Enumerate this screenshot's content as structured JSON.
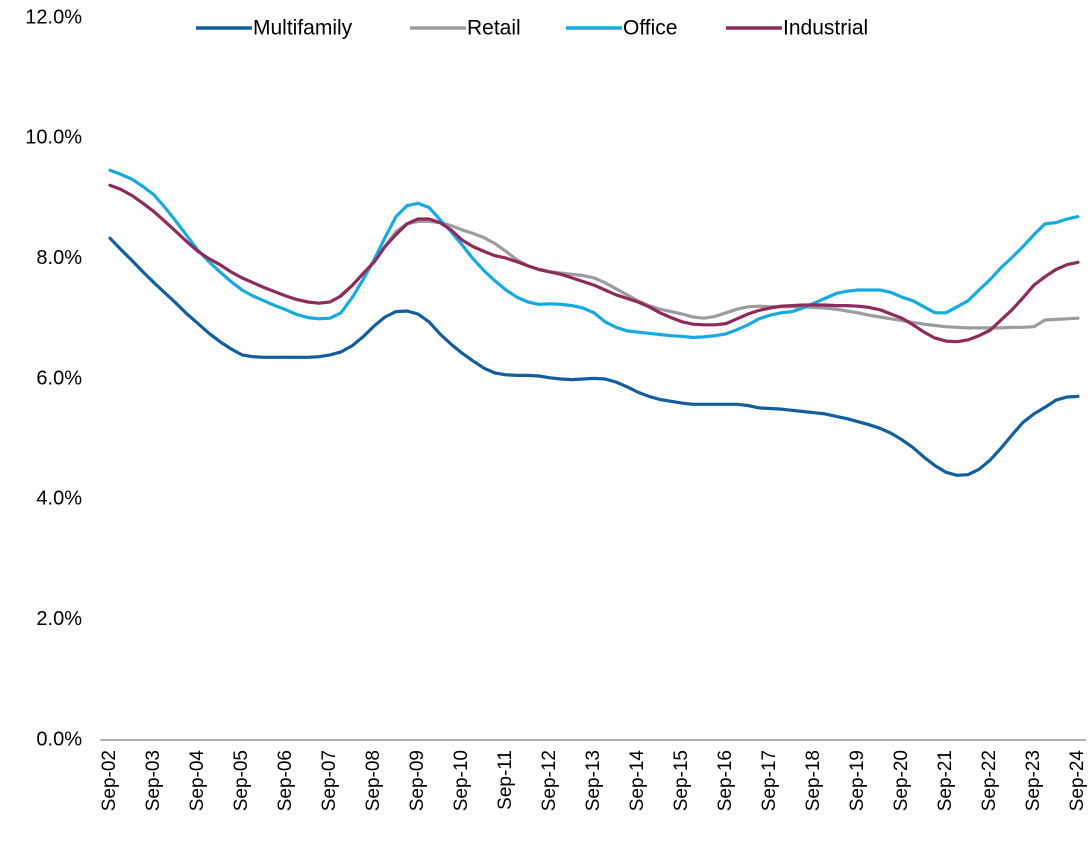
{
  "chart_data": {
    "type": "line",
    "categories": [
      "Sep-02",
      null,
      null,
      null,
      "Sep-03",
      null,
      null,
      null,
      "Sep-04",
      null,
      null,
      null,
      "Sep-05",
      null,
      null,
      null,
      "Sep-06",
      null,
      null,
      null,
      "Sep-07",
      null,
      null,
      null,
      "Sep-08",
      null,
      null,
      null,
      "Sep-09",
      null,
      null,
      null,
      "Sep-10",
      null,
      null,
      null,
      "Sep-11",
      null,
      null,
      null,
      "Sep-12",
      null,
      null,
      null,
      "Sep-13",
      null,
      null,
      null,
      "Sep-14",
      null,
      null,
      null,
      "Sep-15",
      null,
      null,
      null,
      "Sep-16",
      null,
      null,
      null,
      "Sep-17",
      null,
      null,
      null,
      "Sep-18",
      null,
      null,
      null,
      "Sep-19",
      null,
      null,
      null,
      "Sep-20",
      null,
      null,
      null,
      "Sep-21",
      null,
      null,
      null,
      "Sep-22",
      null,
      null,
      null,
      "Sep-23",
      null,
      null,
      null,
      "Sep-24"
    ],
    "series": [
      {
        "name": "Multifamily",
        "color": "#135e9e",
        "values": [
          8.34,
          8.15,
          7.97,
          7.78,
          7.6,
          7.43,
          7.26,
          7.08,
          6.92,
          6.76,
          6.62,
          6.5,
          6.4,
          6.37,
          6.36,
          6.36,
          6.36,
          6.36,
          6.36,
          6.37,
          6.4,
          6.45,
          6.55,
          6.7,
          6.88,
          7.03,
          7.12,
          7.13,
          7.08,
          6.95,
          6.75,
          6.58,
          6.43,
          6.3,
          6.18,
          6.1,
          6.07,
          6.06,
          6.06,
          6.05,
          6.02,
          6.0,
          5.99,
          6.0,
          6.01,
          6.0,
          5.95,
          5.87,
          5.78,
          5.71,
          5.66,
          5.63,
          5.6,
          5.58,
          5.58,
          5.58,
          5.58,
          5.58,
          5.56,
          5.52,
          5.51,
          5.5,
          5.48,
          5.46,
          5.44,
          5.42,
          5.38,
          5.34,
          5.29,
          5.24,
          5.18,
          5.1,
          4.99,
          4.86,
          4.7,
          4.56,
          4.45,
          4.4,
          4.41,
          4.5,
          4.65,
          4.85,
          5.07,
          5.28,
          5.42,
          5.53,
          5.65,
          5.7,
          5.71
        ]
      },
      {
        "name": "Retail",
        "color": "#9c9ca0",
        "values": [
          null,
          null,
          null,
          null,
          null,
          null,
          null,
          null,
          null,
          null,
          null,
          null,
          null,
          null,
          null,
          null,
          null,
          null,
          null,
          null,
          null,
          7.4,
          7.55,
          7.75,
          7.95,
          8.2,
          8.45,
          8.58,
          8.62,
          8.62,
          8.6,
          8.55,
          8.48,
          8.42,
          8.35,
          8.25,
          8.12,
          7.98,
          7.88,
          7.82,
          7.78,
          7.76,
          7.74,
          7.72,
          7.68,
          7.6,
          7.5,
          7.4,
          7.3,
          7.22,
          7.16,
          7.12,
          7.08,
          7.03,
          7.01,
          7.04,
          7.1,
          7.16,
          7.2,
          7.21,
          7.2,
          7.2,
          7.2,
          7.2,
          7.19,
          7.18,
          7.16,
          7.13,
          7.1,
          7.06,
          7.03,
          7.0,
          6.97,
          6.94,
          6.91,
          6.89,
          6.87,
          6.86,
          6.85,
          6.85,
          6.85,
          6.85,
          6.86,
          6.86,
          6.87,
          6.98,
          6.99,
          7.0,
          7.01
        ]
      },
      {
        "name": "Office",
        "color": "#17a9e1",
        "values": [
          9.47,
          9.4,
          9.32,
          9.2,
          9.06,
          8.85,
          8.62,
          8.38,
          8.14,
          7.95,
          7.78,
          7.62,
          7.48,
          7.38,
          7.3,
          7.22,
          7.15,
          7.07,
          7.02,
          7.0,
          7.01,
          7.1,
          7.35,
          7.65,
          7.98,
          8.35,
          8.7,
          8.88,
          8.92,
          8.85,
          8.65,
          8.45,
          8.23,
          8.0,
          7.8,
          7.63,
          7.48,
          7.36,
          7.28,
          7.24,
          7.25,
          7.24,
          7.22,
          7.18,
          7.1,
          6.95,
          6.86,
          6.8,
          6.78,
          6.76,
          6.74,
          6.72,
          6.71,
          6.69,
          6.7,
          6.72,
          6.75,
          6.82,
          6.9,
          7.0,
          7.06,
          7.1,
          7.12,
          7.18,
          7.26,
          7.34,
          7.42,
          7.46,
          7.48,
          7.48,
          7.48,
          7.44,
          7.36,
          7.3,
          7.2,
          7.1,
          7.1,
          7.2,
          7.3,
          7.48,
          7.65,
          7.85,
          8.02,
          8.2,
          8.4,
          8.58,
          8.6,
          8.66,
          8.7
        ]
      },
      {
        "name": "Industrial",
        "color": "#8f2b5c",
        "values": [
          9.22,
          9.15,
          9.05,
          8.92,
          8.78,
          8.62,
          8.45,
          8.28,
          8.12,
          8.0,
          7.9,
          7.78,
          7.68,
          7.6,
          7.52,
          7.45,
          7.38,
          7.32,
          7.28,
          7.26,
          7.28,
          7.38,
          7.55,
          7.75,
          7.94,
          8.2,
          8.4,
          8.58,
          8.66,
          8.66,
          8.6,
          8.48,
          8.31,
          8.2,
          8.12,
          8.05,
          8.01,
          7.95,
          7.88,
          7.82,
          7.78,
          7.74,
          7.68,
          7.62,
          7.56,
          7.48,
          7.4,
          7.34,
          7.28,
          7.2,
          7.1,
          7.02,
          6.95,
          6.91,
          6.9,
          6.9,
          6.92,
          7.0,
          7.08,
          7.14,
          7.18,
          7.21,
          7.22,
          7.23,
          7.23,
          7.23,
          7.22,
          7.22,
          7.21,
          7.19,
          7.15,
          7.08,
          7.01,
          6.9,
          6.78,
          6.68,
          6.63,
          6.62,
          6.65,
          6.72,
          6.81,
          6.98,
          7.15,
          7.35,
          7.56,
          7.7,
          7.82,
          7.9,
          7.94
        ]
      }
    ],
    "ylim": [
      0,
      12
    ],
    "yticks": [
      {
        "value": 0,
        "label": "0.0%"
      },
      {
        "value": 2,
        "label": "2.0%"
      },
      {
        "value": 4,
        "label": "4.0%"
      },
      {
        "value": 6,
        "label": "6.0%"
      },
      {
        "value": 8,
        "label": "8.0%"
      },
      {
        "value": 10,
        "label": "10.0%"
      },
      {
        "value": 12,
        "label": "12.0%"
      }
    ],
    "legend": "top",
    "grid": false
  }
}
